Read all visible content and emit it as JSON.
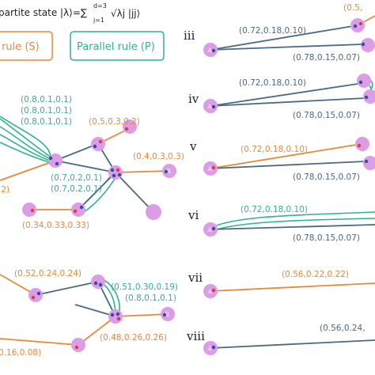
{
  "header": {
    "state_text": "partite state |λ⟩=∑",
    "sum_upper": "d=3",
    "sum_lower": "j=1",
    "state_tail": "√λj |jj⟩",
    "rule_s": "rule (S)",
    "rule_p": "Parallel rule (P)"
  },
  "colors": {
    "orange": "#e8883a",
    "blue": "#4a6a82",
    "green": "#2fb38f",
    "node": "#dc9ce6"
  },
  "left_top": {
    "green_labels": [
      "(0.8,0.1,0.1)",
      "(0.8,0.1,0.1)",
      "(0.8,0.1,0.1)",
      "(0.7,0.2,0.1)",
      "(0.7,0.2,0.1)"
    ],
    "orange_labels": [
      "(0.5,0.3,0.2)",
      "(0.4,0.3,0.3)",
      ".2)",
      "(0.34,0.33,0.33)"
    ],
    "node_b": "B"
  },
  "left_bottom": {
    "orange_labels": [
      "(0.52,0.24,0.24)",
      "(0.48,0.26,0.26)",
      "0.16,0.08)"
    ],
    "green_labels": [
      "(0.51,0.30,0.19)",
      "(0.8,0.1,0.1)"
    ],
    "node_b": "B"
  },
  "right": {
    "rows": [
      {
        "roman": "iii",
        "label1": "(0.72,0.18,0.10)",
        "label2": "(0.78,0.15,0.07)",
        "top_label": "(0.5,",
        "node": "A"
      },
      {
        "roman": "iv",
        "label1": "(0.72,0.18,0.10)",
        "label2": "(0.78,0.15,0.07)",
        "node": "A"
      },
      {
        "roman": "v",
        "label1": "(0.72,0.18,0.10)",
        "label2": "(0.78,0.15,0.07)",
        "node": "A"
      },
      {
        "roman": "vi",
        "label1": "(0.72,0.18,0.10)",
        "label2": "(0.78,0.15,0.07)",
        "node": "A"
      },
      {
        "roman": "vii",
        "label1": "(0.56,0.22,0.22)",
        "node": "A"
      },
      {
        "roman": "viii",
        "label1": "(0.56,0.24,",
        "node": "A"
      }
    ]
  }
}
